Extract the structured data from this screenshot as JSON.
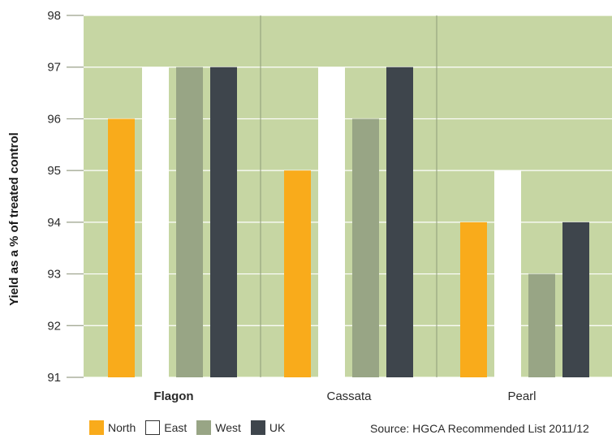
{
  "chart_data": {
    "type": "bar",
    "ylabel": "Yield as a % of treated control",
    "ylim": [
      91,
      98
    ],
    "yticks": [
      91,
      92,
      93,
      94,
      95,
      96,
      97,
      98
    ],
    "categories": [
      "Flagon",
      "Cassata",
      "Pearl"
    ],
    "bold_category": "Flagon",
    "series": [
      {
        "name": "North",
        "color": "#f9ab1b",
        "values": [
          96,
          95,
          94
        ]
      },
      {
        "name": "East",
        "color": "#ffffff",
        "values": [
          97,
          97,
          95
        ]
      },
      {
        "name": "West",
        "color": "#98a585",
        "values": [
          97,
          96,
          93
        ]
      },
      {
        "name": "UK",
        "color": "#3e454c",
        "values": [
          97,
          97,
          94
        ]
      }
    ],
    "grid": true,
    "legend_position": "bottom-left",
    "source": "Source: HGCA Recommended List 2011/12",
    "plot_background": "#c6d6a3"
  }
}
